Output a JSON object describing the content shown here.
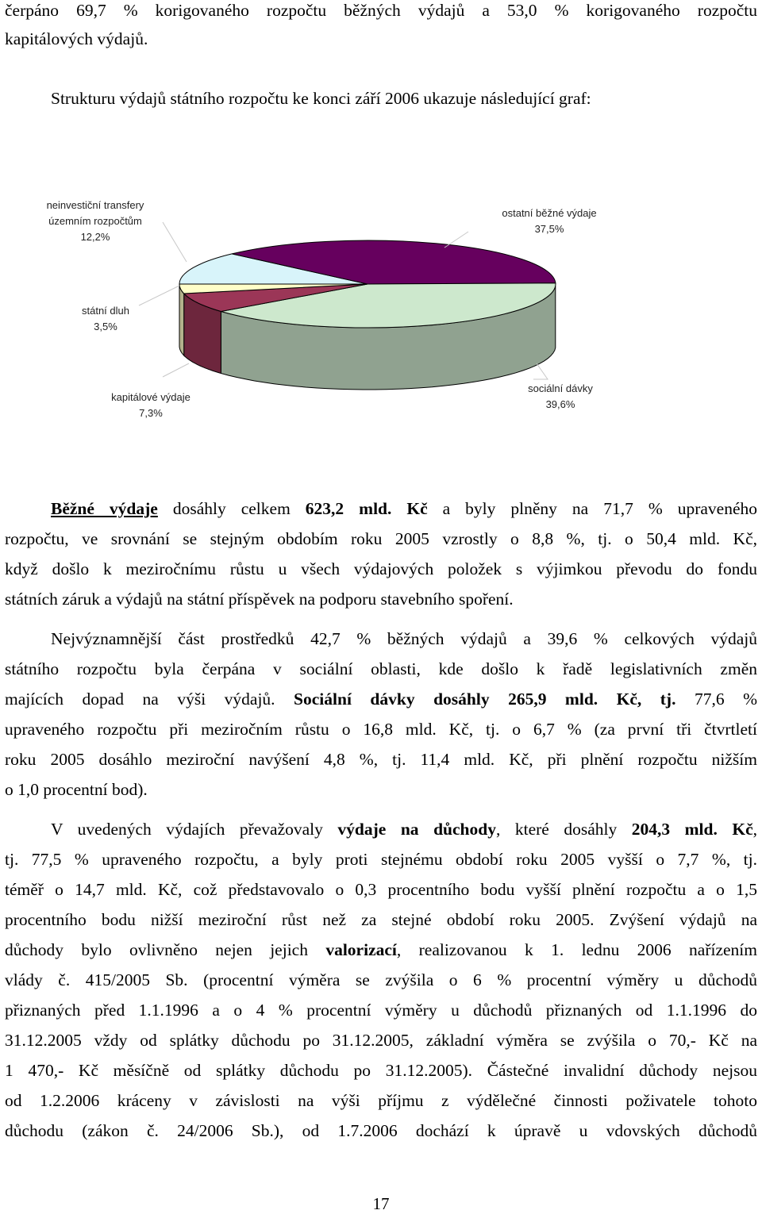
{
  "top": {
    "line1": "čerpáno 69,7 % korigovaného rozpočtu běžných výdajů a 53,0 % korigovaného rozpočtu",
    "line2": "kapitálových výdajů."
  },
  "intro": "Strukturu výdajů státního rozpočtu ke konci září 2006 ukazuje následující graf:",
  "chart_data": {
    "type": "pie",
    "slices": [
      {
        "label": "ostatní běžné výdaje",
        "value": 37.5,
        "pct": "37,5%",
        "color": "#66005e"
      },
      {
        "label": "sociální dávky",
        "value": 39.6,
        "pct": "39,6%",
        "color": "#cde8cd"
      },
      {
        "label": "kapitálové výdaje",
        "value": 7.3,
        "pct": "7,3%",
        "color": "#9b3657"
      },
      {
        "label": "státní dluh",
        "value": 3.5,
        "pct": "3,5%",
        "color": "#fffec8"
      },
      {
        "label": "neinvestiční transfery územním rozpočtům",
        "value": 12.2,
        "pct": "12,2%",
        "color": "#d8f4fa"
      }
    ],
    "label_lines": {
      "transfery_1": "neinvestiční transfery",
      "transfery_2": "územním rozpočtům",
      "transfery_pct": "12,2%",
      "ostatni": "ostatní běžné výdaje",
      "ostatni_pct": "37,5%",
      "dluh": "státní dluh",
      "dluh_pct": "3,5%",
      "kapitalove": "kapitálové výdaje",
      "kapitalove_pct": "7,3%",
      "socialni": "sociální dávky",
      "socialni_pct": "39,6%"
    }
  },
  "para1": {
    "l1_b1": "Běžné výdaje",
    "l1_t1": " dosáhly celkem ",
    "l1_b2": "623,2 mld. Kč",
    "l1_t2": " a byly plněny na 71,7 % upraveného",
    "l2": "rozpočtu, ve srovnání se stejným obdobím roku 2005 vzrostly o 8,8 %, tj. o 50,4 mld. Kč,",
    "l3": "když došlo k meziročnímu růstu u všech výdajových položek s výjimkou převodu do fondu",
    "l4": "státních záruk a výdajů na státní příspěvek na podporu stavebního spoření."
  },
  "para2": {
    "l1": "Nejvýznamnější část prostředků 42,7 % běžných výdajů a 39,6 % celkových výdajů",
    "l2": "státního rozpočtu byla čerpána v sociální oblasti, kde došlo k řadě legislativních změn",
    "l3_t": "majících dopad na výši výdajů. ",
    "l3_b": "Sociální dávky dosáhly 265,9 mld. Kč, tj.",
    "l3_t2": " 77,6 %",
    "l4": "upraveného rozpočtu při meziročním růstu o 16,8 mld. Kč, tj. o 6,7 % (za první tři čtvrtletí",
    "l5": "roku 2005 dosáhlo meziroční navýšení 4,8 %, tj. 11,4 mld. Kč, při plnění rozpočtu nižším",
    "l6": "o 1,0 procentní bod)."
  },
  "para3": {
    "l1_t1": "V uvedených výdajích převažovaly ",
    "l1_b1": "výdaje na důchody",
    "l1_t2": ", které dosáhly ",
    "l1_b2": "204,3 mld. Kč",
    "l1_t3": ",",
    "l2": "tj. 77,5 % upraveného rozpočtu, a byly proti stejnému období roku 2005 vyšší o 7,7 %, tj.",
    "l3": "téměř o 14,7 mld. Kč, což představovalo o 0,3 procentního bodu vyšší plnění rozpočtu a o 1,5",
    "l4": "procentního bodu nižší meziroční růst než za stejné období roku 2005. Zvýšení výdajů na",
    "l5_t1": "důchody bylo ovlivněno nejen jejich ",
    "l5_b": "valorizací",
    "l5_t2": ", realizovanou k 1. lednu 2006 nařízením",
    "l6": "vlády č. 415/2005 Sb. (procentní výměra se zvýšila o 6 % procentní výměry u důchodů",
    "l7": "přiznaných před 1.1.1996 a o 4 % procentní výměry u důchodů přiznaných od 1.1.1996 do",
    "l8": "31.12.2005 vždy od splátky důchodu po 31.12.2005, základní výměra se zvýšila o 70,- Kč na",
    "l9": "1 470,- Kč měsíčně od splátky důchodu po 31.12.2005). Částečné invalidní důchody nejsou",
    "l10": "od 1.2.2006 kráceny v závislosti na výši příjmu z výdělečné činnosti poživatele tohoto",
    "l11": "důchodu (zákon č. 24/2006 Sb.), od 1.7.2006 dochází k úpravě u vdovských důchodů"
  },
  "page_number": "17"
}
